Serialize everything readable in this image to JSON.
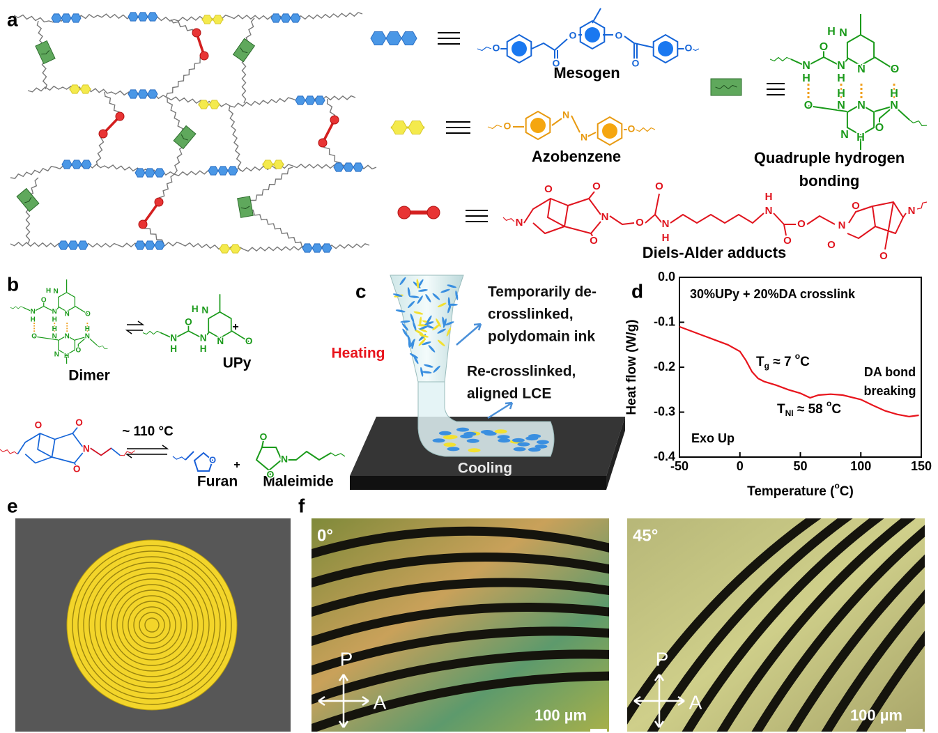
{
  "panels": {
    "a": {
      "label": "a",
      "mesogen": {
        "name": "Mesogen",
        "atoms": [
          "O",
          "O",
          "O",
          "O",
          "O",
          "O"
        ]
      },
      "azobenzene": {
        "name": "Azobenzene",
        "atoms": [
          "O",
          "N",
          "N",
          "O"
        ]
      },
      "hydrogen_bonding": {
        "name": [
          "Quadruple hydrogen",
          "bonding"
        ],
        "atoms": [
          "H",
          "N",
          "O",
          "N",
          "H",
          "N",
          "H",
          "N",
          "O",
          "O",
          "H",
          "N",
          "N",
          "H",
          "N",
          "O",
          "N",
          "H"
        ]
      },
      "diels_alder": {
        "name": "Diels-Alder adducts",
        "atoms": [
          "O",
          "O",
          "N",
          "O",
          "O",
          "O",
          "N",
          "H",
          "H",
          "N",
          "O",
          "O",
          "N",
          "O",
          "O",
          "O",
          "N",
          "N"
        ]
      }
    },
    "b": {
      "label": "b",
      "dimer": "Dimer",
      "upy": "UPy",
      "plus": [
        "+",
        "+"
      ],
      "temperature": "~ 110 °C",
      "furan": "Furan",
      "maleimide": "Maleimide",
      "dimer_atoms": [
        "H",
        "N",
        "O",
        "N",
        "H",
        "N",
        "H",
        "N",
        "O",
        "O",
        "H",
        "N",
        "N",
        "H",
        "N",
        "O",
        "N",
        "H"
      ],
      "upy_atoms": [
        "H",
        "N",
        "O",
        "N",
        "H",
        "N",
        "H",
        "N",
        "O"
      ],
      "da_atoms": [
        "O",
        "O",
        "N",
        "O"
      ],
      "furan_atoms": [
        "O"
      ],
      "maleimide_atoms": [
        "O",
        "N",
        "O"
      ]
    },
    "c": {
      "label": "c",
      "heating": "Heating",
      "cooling": "Cooling",
      "ink": [
        "Temporarily de-",
        "crosslinked,",
        "polydomain ink"
      ],
      "lce": [
        "Re-crosslinked,",
        "aligned LCE"
      ]
    },
    "d": {
      "label": "d"
    },
    "e": {
      "label": "e"
    },
    "f": {
      "label": "f",
      "polarizer": [
        "P",
        "P"
      ],
      "analyzer": [
        "A",
        "A"
      ],
      "images": [
        {
          "angle": "0°",
          "scale": "100 µm"
        },
        {
          "angle": "45°",
          "scale": "100 µm"
        }
      ]
    }
  },
  "chart_data": {
    "type": "line",
    "ylabel": "Heat flow (W/g)",
    "xlabel": [
      "Temperature (",
      "o",
      "C)"
    ],
    "x": [
      -50,
      -40,
      -30,
      -20,
      -10,
      0,
      5,
      10,
      15,
      20,
      30,
      40,
      50,
      58,
      65,
      75,
      85,
      100,
      110,
      120,
      130,
      140,
      148
    ],
    "values": [
      -0.11,
      -0.12,
      -0.13,
      -0.14,
      -0.15,
      -0.165,
      -0.185,
      -0.21,
      -0.225,
      -0.232,
      -0.24,
      -0.25,
      -0.258,
      -0.268,
      -0.262,
      -0.26,
      -0.262,
      -0.272,
      -0.285,
      -0.297,
      -0.305,
      -0.31,
      -0.307
    ],
    "color": "#e8141c",
    "xlim": [
      -50,
      150
    ],
    "xticks": [
      -50,
      0,
      50,
      100,
      150
    ],
    "ylim": [
      -0.4,
      0
    ],
    "yticks": [
      -0.4,
      -0.3,
      -0.2,
      -0.1,
      {
        "value": 0,
        "label": "0.0"
      }
    ],
    "annotations": {
      "title": "30%UPy + 20%DA crosslink",
      "tg": [
        "T",
        "g",
        " ≈ 7 ",
        "o",
        "C"
      ],
      "tni": [
        "T",
        "NI",
        " ≈ 58 ",
        "o",
        "C"
      ],
      "da": [
        "DA bond",
        "breaking"
      ],
      "exo": "Exo Up"
    }
  }
}
